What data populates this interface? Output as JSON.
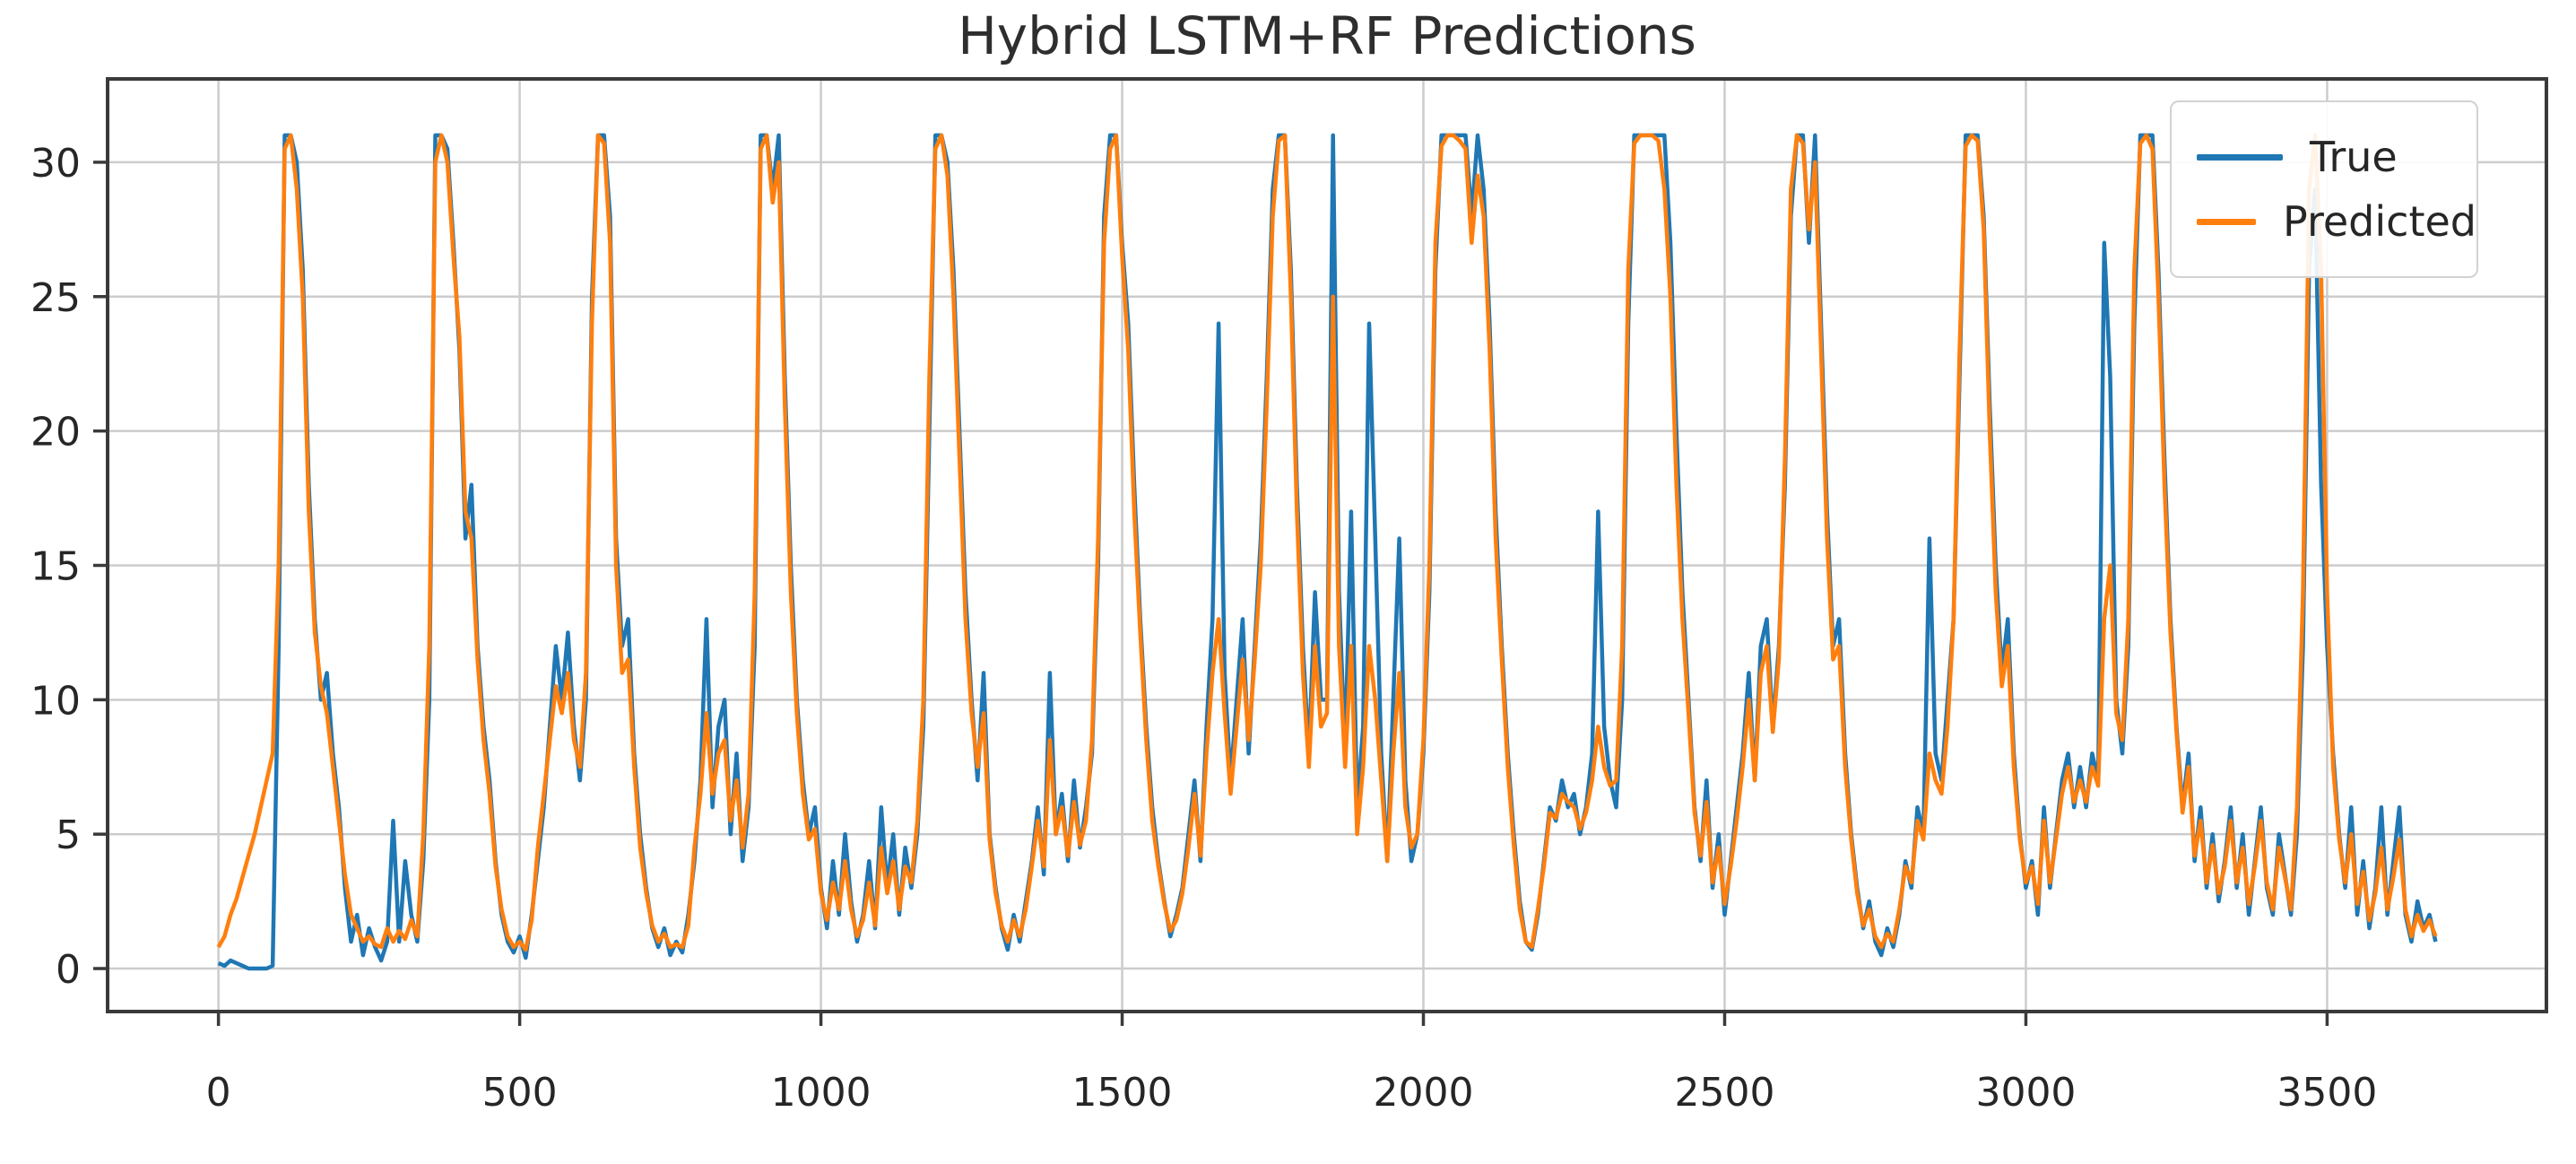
{
  "chart_data": {
    "type": "line",
    "title": "Hybrid LSTM+RF Predictions",
    "xlabel": "",
    "ylabel": "",
    "grid": true,
    "grid_color": "#cccccc",
    "spine_color": "#3a3a3a",
    "tick_text_color": "#262626",
    "legend_position": "upper right",
    "legend_labels": [
      "True",
      "Predicted"
    ],
    "xlim": [
      -184,
      3864
    ],
    "ylim": [
      -1.6,
      33.1
    ],
    "x_ticks": [
      0,
      500,
      1000,
      1500,
      2000,
      2500,
      3000,
      3500
    ],
    "y_ticks": [
      0,
      5,
      10,
      15,
      20,
      25,
      30
    ],
    "x_start": 0,
    "x_step": 10,
    "series": [
      {
        "name": "True",
        "color": "#1f77b4",
        "values": [
          0.2,
          0.1,
          0.3,
          0.2,
          0.1,
          0,
          0,
          0,
          0,
          0.1,
          12,
          31,
          31,
          30,
          26,
          18,
          13,
          10,
          11,
          8,
          6,
          3,
          1,
          2,
          0.5,
          1.5,
          0.8,
          0.3,
          1,
          5.5,
          1,
          4,
          2,
          1,
          4,
          10,
          31,
          31,
          30.5,
          27,
          23,
          16,
          18,
          12,
          9,
          7,
          4,
          2,
          1,
          0.6,
          1.2,
          0.4,
          2,
          4,
          6,
          9,
          12,
          10,
          12.5,
          9,
          7,
          10,
          25,
          31,
          31,
          28,
          16,
          12,
          13,
          8,
          5,
          3,
          1.5,
          0.8,
          1.5,
          0.5,
          1,
          0.6,
          2,
          4,
          7,
          13,
          6,
          9,
          10,
          5,
          8,
          4,
          6,
          12,
          31,
          31,
          29,
          31,
          22,
          15,
          10,
          7,
          5,
          6,
          3,
          1.5,
          4,
          2,
          5,
          2.5,
          1,
          2,
          4,
          1.5,
          6,
          3,
          5,
          2,
          4.5,
          3,
          5,
          9,
          20,
          31,
          31,
          30,
          26,
          20,
          14,
          10,
          7,
          11,
          5,
          3,
          1.5,
          0.7,
          2,
          1,
          2.5,
          4,
          6,
          3.5,
          11,
          5,
          6.5,
          4,
          7,
          4.5,
          6,
          8,
          15,
          28,
          31,
          31,
          27,
          24,
          18,
          13,
          9,
          6,
          4,
          2.5,
          1.2,
          2,
          3,
          5,
          7,
          4,
          9,
          13,
          24,
          11,
          7,
          10,
          13,
          8,
          12,
          16,
          22,
          29,
          31,
          31,
          26,
          18,
          12,
          8,
          14,
          10,
          10,
          31,
          14,
          8,
          17,
          6,
          9,
          24,
          16,
          8,
          4,
          10,
          16,
          7,
          4,
          5,
          8,
          14,
          26,
          31,
          31,
          31,
          31,
          31,
          28,
          31,
          29,
          24,
          17,
          12,
          8,
          5,
          2.5,
          1,
          0.7,
          2,
          4,
          6,
          5.5,
          7,
          6,
          6.5,
          5,
          6,
          8,
          17,
          9,
          7,
          6,
          10,
          24,
          31,
          31,
          31,
          31,
          31,
          31,
          27,
          20,
          14,
          10,
          6,
          4,
          7,
          3,
          5,
          2,
          4,
          6,
          8,
          11,
          7,
          12,
          13,
          9,
          12,
          18,
          28,
          31,
          31,
          27,
          31,
          24,
          17,
          12,
          13,
          8,
          5,
          3,
          1.5,
          2.5,
          1,
          0.5,
          1.5,
          0.8,
          2,
          4,
          3,
          6,
          5,
          16,
          8,
          7,
          10,
          13,
          22,
          31,
          31,
          31,
          28,
          21,
          15,
          11,
          13,
          8,
          5,
          3,
          4,
          2,
          6,
          3,
          5,
          7,
          8,
          6,
          7.5,
          6,
          8,
          7,
          27,
          22,
          10,
          8,
          12,
          24,
          31,
          31,
          31,
          26,
          19,
          13,
          9,
          6,
          8,
          4,
          6,
          3,
          5,
          2.5,
          4,
          6,
          3,
          5,
          2,
          4,
          6,
          3,
          2,
          5,
          3.5,
          2,
          5,
          12,
          26,
          29,
          18,
          12,
          8,
          5,
          3,
          6,
          2,
          4,
          1.5,
          3,
          6,
          2,
          4,
          6,
          2,
          1,
          2.5,
          1.5,
          2,
          1
        ]
      },
      {
        "name": "Predicted",
        "color": "#ff7f0e",
        "values": [
          0.8,
          1.2,
          2,
          2.6,
          3.4,
          4.2,
          5,
          6,
          7,
          8,
          15,
          30.5,
          31,
          29,
          25,
          17,
          12.5,
          10.5,
          9.5,
          7.5,
          5.5,
          3.5,
          2,
          1.5,
          1,
          1.2,
          0.9,
          0.8,
          1.5,
          1,
          1.4,
          1.1,
          1.8,
          1.2,
          5,
          12,
          30,
          31,
          30,
          26.5,
          23.5,
          17,
          16,
          11.5,
          8.5,
          6.5,
          3.8,
          2.2,
          1.2,
          0.8,
          1,
          0.7,
          1.8,
          4.5,
          6.5,
          8.5,
          10.5,
          9.5,
          11,
          8.5,
          7.5,
          11,
          24,
          31,
          30.7,
          27,
          15,
          11,
          11.5,
          7.5,
          4.5,
          2.8,
          1.6,
          1,
          1.3,
          0.8,
          0.9,
          0.8,
          1.6,
          4.5,
          6.5,
          9.5,
          6.5,
          8,
          8.5,
          5.5,
          7,
          4.5,
          6.5,
          14,
          30.5,
          31,
          28.5,
          30,
          21,
          14,
          9.5,
          6.5,
          4.8,
          5.2,
          2.8,
          1.8,
          3.2,
          2.2,
          4,
          2.2,
          1.2,
          1.8,
          3.2,
          1.6,
          4.5,
          2.8,
          4,
          2.2,
          3.8,
          3.2,
          5.5,
          10,
          22,
          30.5,
          31,
          29.5,
          25,
          19,
          13,
          9.5,
          7.5,
          9.5,
          4.8,
          2.8,
          1.6,
          1,
          1.8,
          1.2,
          2.2,
          3.8,
          5.5,
          3.8,
          8.5,
          5,
          6,
          4.2,
          6.2,
          4.6,
          5.5,
          8.5,
          16,
          27,
          30.5,
          31,
          26.5,
          23,
          17,
          12.5,
          8.5,
          5.5,
          3.8,
          2.4,
          1.4,
          1.8,
          2.8,
          4.5,
          6.5,
          4.2,
          8,
          11,
          13,
          9.5,
          6.5,
          9,
          11.5,
          8.5,
          11.5,
          15,
          21,
          28,
          30.8,
          31,
          25,
          17,
          11,
          7.5,
          12,
          9,
          9.5,
          25,
          12,
          7.5,
          12,
          5,
          7.5,
          12,
          10,
          7,
          4,
          8,
          11,
          6,
          4.5,
          5,
          8.5,
          15,
          27,
          30.6,
          31,
          31,
          30.8,
          30.5,
          27,
          29.5,
          28,
          23,
          16,
          11.5,
          7.5,
          4.6,
          2.2,
          1,
          0.8,
          2.2,
          3.8,
          5.8,
          5.6,
          6.5,
          6.2,
          6,
          5.2,
          5.8,
          7,
          9,
          7.5,
          6.8,
          7,
          12,
          26,
          30.7,
          31,
          31,
          31,
          30.8,
          29,
          25,
          18,
          13,
          9.5,
          5.8,
          4.2,
          6.2,
          3.2,
          4.5,
          2.4,
          3.8,
          5.5,
          7.5,
          10,
          7,
          11,
          12,
          8.8,
          11.5,
          19,
          29,
          31,
          30.7,
          27.5,
          30,
          23,
          16,
          11.5,
          12,
          7.5,
          4.8,
          2.8,
          1.6,
          2.2,
          1.2,
          0.8,
          1.3,
          1,
          2.2,
          3.8,
          3.2,
          5.5,
          4.8,
          8,
          7,
          6.5,
          9,
          13,
          23,
          30.6,
          31,
          30.8,
          27.5,
          20,
          14,
          10.5,
          12,
          7.5,
          4.8,
          3.2,
          3.8,
          2.4,
          5.5,
          3.2,
          4.8,
          6.5,
          7.5,
          6.2,
          7,
          6.2,
          7.5,
          6.8,
          13,
          15,
          9.5,
          8.5,
          13,
          26,
          30.7,
          31,
          30.5,
          25,
          18,
          12.5,
          8.8,
          5.8,
          7.5,
          4.2,
          5.5,
          3.2,
          4.6,
          2.8,
          3.8,
          5.5,
          3.2,
          4.5,
          2.4,
          3.8,
          5.5,
          3.2,
          2.2,
          4.5,
          3.4,
          2.2,
          6,
          14,
          29,
          31,
          26,
          14,
          7.5,
          4.8,
          3.2,
          5,
          2.4,
          3.6,
          1.8,
          2.8,
          4.5,
          2.2,
          3.4,
          4.8,
          2.2,
          1.2,
          2,
          1.4,
          1.8,
          1.2
        ]
      }
    ]
  }
}
